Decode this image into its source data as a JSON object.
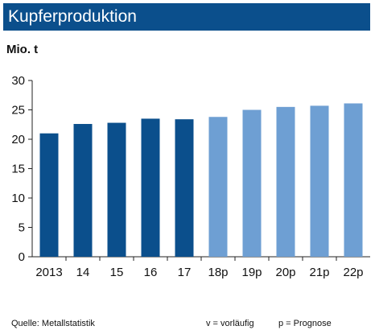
{
  "title": "Kupferproduktion",
  "unit": "Mio. t",
  "footer": {
    "source": "Quelle:  Metallstatistik",
    "note_preliminary": "v = vorläufig",
    "note_forecast": "p = Prognose"
  },
  "colors": {
    "title_bg": "#0b4f8c",
    "actual": "#0b4f8c",
    "forecast": "#6e9fd3",
    "axis": "#222222"
  },
  "chart_data": {
    "type": "bar",
    "categories": [
      "2013",
      "14",
      "15",
      "16",
      "17",
      "18p",
      "19p",
      "20p",
      "21p",
      "22p"
    ],
    "values": [
      21.0,
      22.6,
      22.8,
      23.5,
      23.4,
      23.8,
      25.0,
      25.5,
      25.7,
      26.1
    ],
    "forecast_from_index": 5,
    "ylim": [
      0,
      30
    ],
    "yticks": [
      0,
      5,
      10,
      15,
      20,
      25,
      30
    ],
    "grid": false,
    "legend": "none"
  }
}
